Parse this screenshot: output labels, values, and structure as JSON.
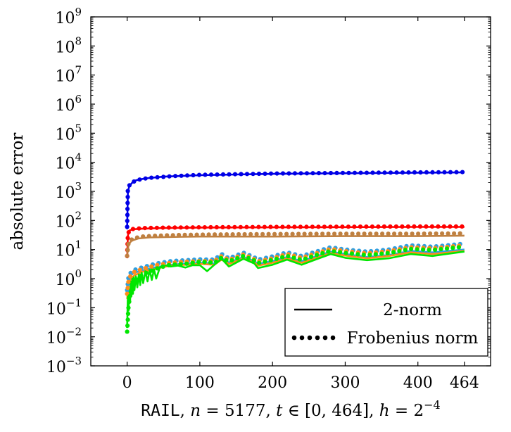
{
  "chart_data": {
    "type": "line",
    "ylabel": "absolute error",
    "xlabel": {
      "dataset": "RAIL",
      "n_label": "n",
      "n_value": "= 5177,",
      "t_label": "t",
      "t_value": "∈ [0, 464],",
      "h_label": "h",
      "h_value": "= 2",
      "h_exp": "−4"
    },
    "y_scale": "log",
    "xlim": [
      -50,
      500
    ],
    "ylim": [
      0.001,
      1000000000
    ],
    "x_ticks": [
      0,
      100,
      200,
      300,
      400,
      464
    ],
    "x_tick_labels": [
      "0",
      "100",
      "200",
      "300",
      "400",
      "464"
    ],
    "y_ticks": [
      0.001,
      0.01,
      0.1,
      1,
      10,
      100,
      1000,
      10000,
      100000,
      1000000,
      10000000,
      100000000,
      1000000000
    ],
    "y_tick_base": "10",
    "y_tick_exps": [
      "−3",
      "−2",
      "−1",
      "0",
      "1",
      "2",
      "3",
      "4",
      "5",
      "6",
      "7",
      "8",
      "9"
    ],
    "grid": false,
    "legend": {
      "position": "bottom-right",
      "entries": [
        {
          "label": "2-norm",
          "style": "solid"
        },
        {
          "label": "Frobenius norm",
          "style": "dotted"
        }
      ]
    },
    "colors": {
      "blue": "#0000e6",
      "red": "#ff0000",
      "brown": "#bf8040",
      "cyan": "#2f9fe0",
      "orange": "#ff8c1a",
      "green": "#00e600"
    },
    "series": [
      {
        "color": "blue",
        "points": [
          [
            0,
            50
          ],
          [
            1,
            1000
          ],
          [
            3,
            1500
          ],
          [
            7,
            2000
          ],
          [
            12,
            2400
          ],
          [
            25,
            2800
          ],
          [
            50,
            3200
          ],
          [
            100,
            3600
          ],
          [
            150,
            3800
          ],
          [
            200,
            4000
          ],
          [
            300,
            4200
          ],
          [
            400,
            4400
          ],
          [
            464,
            4500
          ]
        ]
      },
      {
        "color": "red",
        "points": [
          [
            0,
            5
          ],
          [
            1,
            30
          ],
          [
            3,
            45
          ],
          [
            8,
            50
          ],
          [
            20,
            52
          ],
          [
            50,
            55
          ],
          [
            100,
            57
          ],
          [
            200,
            58
          ],
          [
            300,
            59
          ],
          [
            400,
            60
          ],
          [
            464,
            60
          ]
        ]
      },
      {
        "color": "brown",
        "points": [
          [
            0,
            6
          ],
          [
            2,
            15
          ],
          [
            6,
            20
          ],
          [
            15,
            24
          ],
          [
            30,
            26
          ],
          [
            60,
            27
          ],
          [
            100,
            28
          ],
          [
            200,
            28
          ],
          [
            300,
            29
          ],
          [
            400,
            29
          ],
          [
            464,
            30
          ]
        ]
      },
      {
        "color": "cyan",
        "points": [
          [
            0,
            0.3
          ],
          [
            2,
            0.9
          ],
          [
            5,
            1.3
          ],
          [
            10,
            1.6
          ],
          [
            20,
            1.9
          ],
          [
            40,
            2.5
          ],
          [
            60,
            3
          ],
          [
            80,
            3.3
          ],
          [
            100,
            3.5
          ],
          [
            120,
            3.3
          ],
          [
            130,
            5
          ],
          [
            140,
            3.6
          ],
          [
            160,
            5.5
          ],
          [
            175,
            4
          ],
          [
            180,
            3.2
          ],
          [
            200,
            4
          ],
          [
            220,
            5.5
          ],
          [
            240,
            4
          ],
          [
            260,
            5.8
          ],
          [
            280,
            8.5
          ],
          [
            300,
            7
          ],
          [
            330,
            5.5
          ],
          [
            360,
            6.5
          ],
          [
            390,
            9
          ],
          [
            420,
            8
          ],
          [
            464,
            10
          ]
        ]
      },
      {
        "color": "orange",
        "points": [
          [
            0,
            0.2
          ],
          [
            2,
            0.6
          ],
          [
            5,
            1.0
          ],
          [
            10,
            1.3
          ],
          [
            20,
            1.7
          ],
          [
            40,
            2.2
          ],
          [
            60,
            2.8
          ],
          [
            80,
            3.0
          ],
          [
            100,
            3.2
          ],
          [
            120,
            3.0
          ],
          [
            130,
            4.5
          ],
          [
            140,
            3.2
          ],
          [
            160,
            5.0
          ],
          [
            175,
            3.6
          ],
          [
            180,
            2.8
          ],
          [
            200,
            3.5
          ],
          [
            220,
            5.0
          ],
          [
            240,
            3.5
          ],
          [
            260,
            5.2
          ],
          [
            280,
            7.5
          ],
          [
            300,
            6.2
          ],
          [
            330,
            5.0
          ],
          [
            360,
            6.0
          ],
          [
            390,
            8.0
          ],
          [
            420,
            7.0
          ],
          [
            464,
            9.0
          ]
        ]
      },
      {
        "color": "green",
        "points": [
          [
            0,
            0.02
          ],
          [
            1,
            0.3
          ],
          [
            2,
            0.08
          ],
          [
            3,
            0.5
          ],
          [
            4,
            0.15
          ],
          [
            5,
            0.8
          ],
          [
            6,
            0.25
          ],
          [
            7,
            1.0
          ],
          [
            8,
            0.3
          ],
          [
            9,
            1.1
          ],
          [
            10,
            0.4
          ],
          [
            12,
            1.2
          ],
          [
            14,
            0.5
          ],
          [
            16,
            1.4
          ],
          [
            18,
            0.6
          ],
          [
            20,
            1.6
          ],
          [
            22,
            0.7
          ],
          [
            25,
            1.8
          ],
          [
            28,
            0.8
          ],
          [
            31,
            2.0
          ],
          [
            34,
            0.9
          ],
          [
            37,
            2.1
          ],
          [
            40,
            1.0
          ],
          [
            45,
            2.4
          ],
          [
            50,
            3.0
          ],
          [
            60,
            2.6
          ],
          [
            70,
            2.8
          ],
          [
            80,
            2.4
          ],
          [
            90,
            2.9
          ],
          [
            100,
            2.9
          ],
          [
            110,
            1.8
          ],
          [
            120,
            3.0
          ],
          [
            130,
            4.8
          ],
          [
            140,
            2.6
          ],
          [
            160,
            4.8
          ],
          [
            175,
            3.3
          ],
          [
            180,
            2.3
          ],
          [
            200,
            3.0
          ],
          [
            220,
            4.5
          ],
          [
            240,
            3.0
          ],
          [
            260,
            4.6
          ],
          [
            280,
            7.0
          ],
          [
            300,
            5.2
          ],
          [
            330,
            4.3
          ],
          [
            360,
            5.0
          ],
          [
            390,
            7.0
          ],
          [
            420,
            6.0
          ],
          [
            464,
            8.5
          ]
        ]
      }
    ],
    "dotted_series": [
      {
        "color": "blue",
        "points": [
          [
            0,
            60
          ],
          [
            1,
            1100
          ],
          [
            3,
            1600
          ],
          [
            8,
            2100
          ],
          [
            15,
            2500
          ],
          [
            30,
            2900
          ],
          [
            60,
            3300
          ],
          [
            100,
            3700
          ],
          [
            150,
            3900
          ],
          [
            200,
            4100
          ],
          [
            300,
            4300
          ],
          [
            400,
            4500
          ],
          [
            464,
            4600
          ]
        ]
      },
      {
        "color": "red",
        "points": [
          [
            0,
            6
          ],
          [
            1,
            35
          ],
          [
            4,
            48
          ],
          [
            10,
            52
          ],
          [
            25,
            55
          ],
          [
            60,
            57
          ],
          [
            100,
            58
          ],
          [
            200,
            60
          ],
          [
            300,
            61
          ],
          [
            400,
            62
          ],
          [
            464,
            62
          ]
        ]
      },
      {
        "color": "brown",
        "points": [
          [
            0,
            6
          ],
          [
            2,
            18
          ],
          [
            8,
            24
          ],
          [
            20,
            28
          ],
          [
            40,
            30
          ],
          [
            80,
            32
          ],
          [
            120,
            33
          ],
          [
            200,
            34
          ],
          [
            300,
            35
          ],
          [
            400,
            35
          ],
          [
            464,
            36
          ]
        ]
      },
      {
        "color": "cyan",
        "points": [
          [
            0,
            0.4
          ],
          [
            2,
            1.2
          ],
          [
            5,
            1.6
          ],
          [
            10,
            2.0
          ],
          [
            20,
            2.4
          ],
          [
            40,
            3.3
          ],
          [
            60,
            4.0
          ],
          [
            80,
            4.3
          ],
          [
            100,
            4.6
          ],
          [
            120,
            4.5
          ],
          [
            130,
            7.0
          ],
          [
            140,
            5.0
          ],
          [
            160,
            7.8
          ],
          [
            175,
            5.4
          ],
          [
            180,
            4.5
          ],
          [
            200,
            5.8
          ],
          [
            220,
            8.0
          ],
          [
            240,
            6.0
          ],
          [
            260,
            8.5
          ],
          [
            280,
            12.0
          ],
          [
            300,
            10.0
          ],
          [
            330,
            8.5
          ],
          [
            360,
            10.0
          ],
          [
            390,
            14.0
          ],
          [
            420,
            12.5
          ],
          [
            464,
            16.0
          ]
        ]
      },
      {
        "color": "orange",
        "points": [
          [
            0,
            0.3
          ],
          [
            2,
            0.9
          ],
          [
            5,
            1.3
          ],
          [
            10,
            1.7
          ],
          [
            20,
            2.1
          ],
          [
            40,
            2.9
          ],
          [
            60,
            3.5
          ],
          [
            80,
            3.8
          ],
          [
            100,
            4.0
          ],
          [
            120,
            4.0
          ],
          [
            130,
            6.0
          ],
          [
            140,
            4.4
          ],
          [
            160,
            6.8
          ],
          [
            175,
            4.7
          ],
          [
            180,
            3.9
          ],
          [
            200,
            5.0
          ],
          [
            220,
            7.0
          ],
          [
            240,
            5.2
          ],
          [
            260,
            7.4
          ],
          [
            280,
            10.5
          ],
          [
            300,
            8.8
          ],
          [
            330,
            7.4
          ],
          [
            360,
            8.8
          ],
          [
            390,
            12.0
          ],
          [
            420,
            11.0
          ],
          [
            464,
            14.0
          ]
        ]
      },
      {
        "color": "green",
        "points": [
          [
            0,
            0.015
          ],
          [
            2,
            0.12
          ],
          [
            4,
            0.25
          ],
          [
            6,
            0.45
          ],
          [
            8,
            0.6
          ],
          [
            10,
            0.8
          ],
          [
            14,
            1.0
          ],
          [
            18,
            1.2
          ],
          [
            24,
            1.5
          ],
          [
            30,
            1.7
          ],
          [
            40,
            2.2
          ],
          [
            50,
            2.6
          ],
          [
            60,
            3.0
          ],
          [
            80,
            3.2
          ],
          [
            100,
            3.8
          ],
          [
            120,
            3.5
          ],
          [
            130,
            5.2
          ],
          [
            140,
            3.9
          ],
          [
            160,
            6.0
          ],
          [
            175,
            4.2
          ],
          [
            180,
            3.4
          ],
          [
            200,
            4.4
          ],
          [
            220,
            6.0
          ],
          [
            240,
            4.4
          ],
          [
            260,
            6.4
          ],
          [
            280,
            9.0
          ],
          [
            300,
            7.6
          ],
          [
            330,
            6.4
          ],
          [
            360,
            7.6
          ],
          [
            390,
            10.5
          ],
          [
            420,
            9.6
          ],
          [
            464,
            12.5
          ]
        ]
      }
    ]
  }
}
